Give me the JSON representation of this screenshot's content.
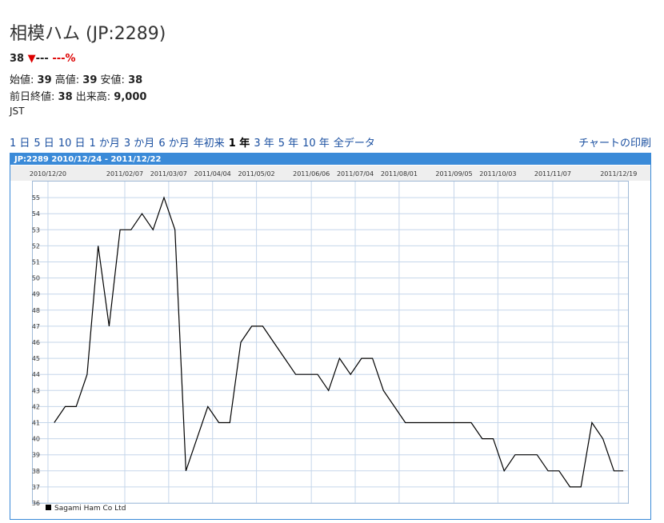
{
  "header": {
    "title": "相模ハム (JP:2289)",
    "price": "38",
    "change": "---",
    "change_pct": "---%",
    "open_label": "始値:",
    "open": "39",
    "high_label": "高値:",
    "high": "39",
    "low_label": "安値:",
    "low": "38",
    "prev_label": "前日終値:",
    "prev": "38",
    "volume_label": "出来高:",
    "volume": "9,000",
    "tz": "JST"
  },
  "periods": [
    "1 日",
    "5 日",
    "10 日",
    "1 か月",
    "3 か月",
    "6 か月",
    "年初来",
    "1 年",
    "3 年",
    "5 年",
    "10 年",
    "全データ"
  ],
  "print": "チャートの印刷",
  "chart_data": {
    "type": "line",
    "title": "JP:2289 2010/12/24 - 2011/12/22",
    "x": [
      "2010/12/24",
      "2010/12/31",
      "2011/01/07",
      "2011/01/14",
      "2011/01/21",
      "2011/01/28",
      "2011/02/04",
      "2011/02/11",
      "2011/02/18",
      "2011/02/25",
      "2011/03/04",
      "2011/03/11",
      "2011/03/18",
      "2011/03/25",
      "2011/04/01",
      "2011/04/08",
      "2011/04/15",
      "2011/04/22",
      "2011/04/29",
      "2011/05/06",
      "2011/05/13",
      "2011/05/20",
      "2011/05/27",
      "2011/06/03",
      "2011/06/10",
      "2011/06/17",
      "2011/06/24",
      "2011/07/01",
      "2011/07/08",
      "2011/07/15",
      "2011/07/22",
      "2011/07/29",
      "2011/08/05",
      "2011/08/12",
      "2011/08/19",
      "2011/08/26",
      "2011/09/02",
      "2011/09/09",
      "2011/09/16",
      "2011/09/23",
      "2011/09/30",
      "2011/10/07",
      "2011/10/14",
      "2011/10/21",
      "2011/10/28",
      "2011/11/04",
      "2011/11/11",
      "2011/11/18",
      "2011/11/25",
      "2011/12/02",
      "2011/12/09",
      "2011/12/16",
      "2011/12/22"
    ],
    "series": [
      {
        "name": "Sagami Ham Co Ltd",
        "color": "#000000",
        "values": [
          41,
          42,
          42,
          44,
          52,
          47,
          53,
          53,
          54,
          53,
          55,
          53,
          38,
          40,
          42,
          41,
          41,
          46,
          47,
          47,
          46,
          45,
          44,
          44,
          44,
          43,
          45,
          44,
          45,
          45,
          43,
          42,
          41,
          41,
          41,
          41,
          41,
          41,
          41,
          40,
          40,
          38,
          39,
          39,
          39,
          38,
          38,
          37,
          37,
          41,
          40,
          38,
          38
        ]
      }
    ],
    "xlim": [
      "2010/12/19",
      "2011/12/25"
    ],
    "xticks": [
      "2010/12/20",
      "2011/02/07",
      "2011/03/07",
      "2011/04/04",
      "2011/05/02",
      "2011/06/06",
      "2011/07/04",
      "2011/08/01",
      "2011/09/05",
      "2011/10/03",
      "2011/11/07",
      "2011/12/19"
    ],
    "ylim": [
      36,
      56
    ],
    "yticks": [
      36,
      37,
      38,
      39,
      40,
      41,
      42,
      43,
      44,
      45,
      46,
      47,
      48,
      49,
      50,
      51,
      52,
      53,
      54,
      55
    ],
    "grid": true
  }
}
